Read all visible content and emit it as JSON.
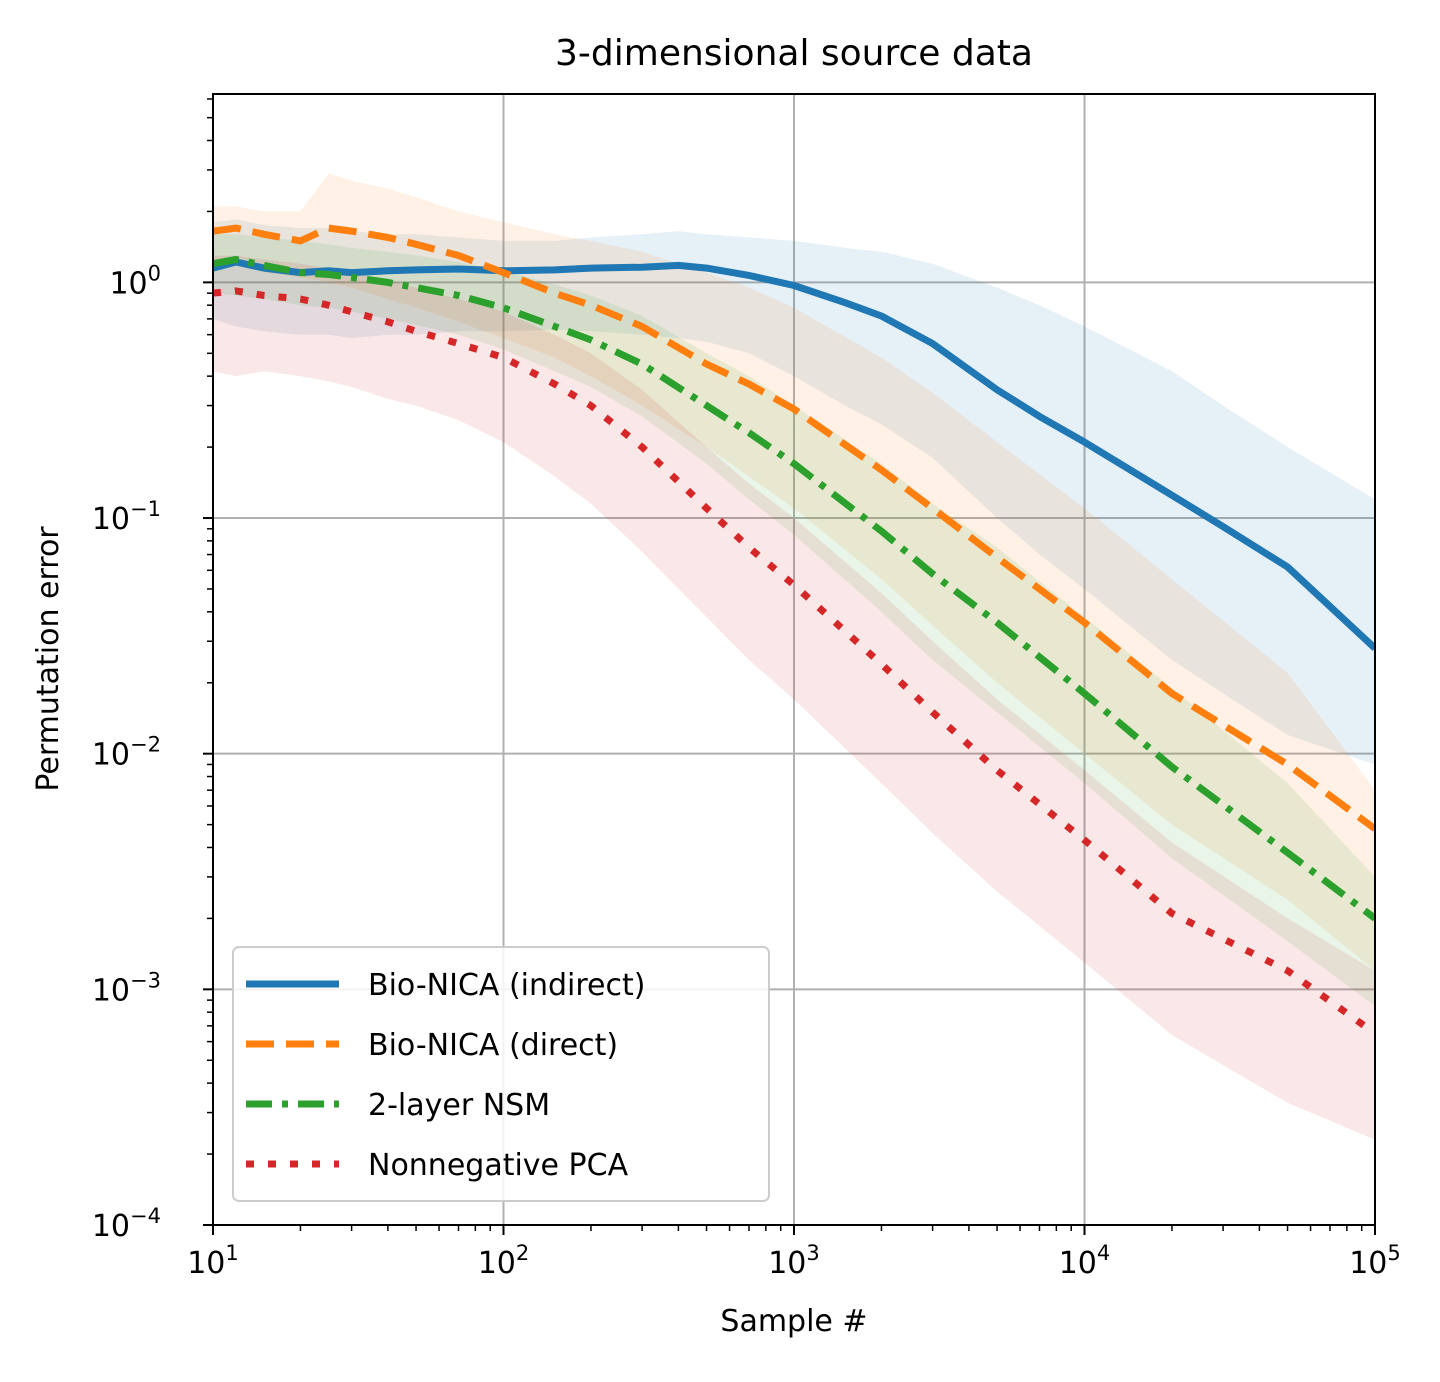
{
  "chart_data": {
    "type": "line",
    "title": "3-dimensional source data",
    "xlabel": "Sample #",
    "ylabel": "Permutation error",
    "xscale": "log",
    "yscale": "log",
    "xlim": [
      10,
      100000
    ],
    "ylim": [
      0.0001,
      6.3
    ],
    "x_ticks": [
      {
        "value": 10,
        "base": "10",
        "exp": "1"
      },
      {
        "value": 100,
        "base": "10",
        "exp": "2"
      },
      {
        "value": 1000,
        "base": "10",
        "exp": "3"
      },
      {
        "value": 10000,
        "base": "10",
        "exp": "4"
      },
      {
        "value": 100000,
        "base": "10",
        "exp": "5"
      }
    ],
    "y_ticks": [
      {
        "value": 1,
        "base": "10",
        "exp": "0"
      },
      {
        "value": 0.1,
        "base": "10",
        "exp": "−1"
      },
      {
        "value": 0.01,
        "base": "10",
        "exp": "−2"
      },
      {
        "value": 0.001,
        "base": "10",
        "exp": "−3"
      },
      {
        "value": 0.0001,
        "base": "10",
        "exp": "−4"
      }
    ],
    "grid": true,
    "legend_position": "lower-left",
    "series": [
      {
        "name": "Bio-NICA (indirect)",
        "color": "#1f77b4",
        "style": "solid",
        "x": [
          10,
          12,
          15,
          20,
          25,
          30,
          40,
          50,
          70,
          100,
          150,
          200,
          300,
          400,
          500,
          700,
          1000,
          1500,
          2000,
          3000,
          5000,
          7000,
          10000,
          20000,
          30000,
          50000,
          100000
        ],
        "y": [
          1.15,
          1.22,
          1.15,
          1.1,
          1.12,
          1.1,
          1.12,
          1.13,
          1.14,
          1.12,
          1.13,
          1.15,
          1.16,
          1.18,
          1.15,
          1.07,
          0.97,
          0.82,
          0.72,
          0.55,
          0.35,
          0.27,
          0.21,
          0.125,
          0.092,
          0.062,
          0.028
        ],
        "band_lower": [
          0.7,
          0.65,
          0.62,
          0.6,
          0.6,
          0.58,
          0.6,
          0.6,
          0.62,
          0.62,
          0.63,
          0.62,
          0.6,
          0.58,
          0.56,
          0.5,
          0.4,
          0.3,
          0.25,
          0.18,
          0.1,
          0.07,
          0.05,
          0.025,
          0.018,
          0.012,
          0.009
        ],
        "band_upper": [
          1.8,
          1.85,
          1.75,
          1.7,
          1.7,
          1.65,
          1.6,
          1.6,
          1.55,
          1.5,
          1.5,
          1.55,
          1.6,
          1.65,
          1.6,
          1.55,
          1.5,
          1.4,
          1.35,
          1.2,
          0.95,
          0.8,
          0.65,
          0.42,
          0.3,
          0.2,
          0.12
        ]
      },
      {
        "name": "Bio-NICA (direct)",
        "color": "#ff7f0e",
        "style": "dashed",
        "x": [
          10,
          12,
          15,
          20,
          25,
          30,
          40,
          50,
          70,
          100,
          150,
          200,
          300,
          500,
          700,
          1000,
          2000,
          3000,
          5000,
          10000,
          20000,
          50000,
          100000
        ],
        "y": [
          1.65,
          1.7,
          1.6,
          1.5,
          1.7,
          1.65,
          1.55,
          1.45,
          1.3,
          1.1,
          0.9,
          0.8,
          0.65,
          0.45,
          0.37,
          0.29,
          0.16,
          0.11,
          0.068,
          0.036,
          0.018,
          0.009,
          0.0048
        ],
        "band_lower": [
          1.25,
          1.2,
          1.1,
          1.05,
          1.0,
          0.95,
          0.85,
          0.78,
          0.68,
          0.58,
          0.48,
          0.4,
          0.3,
          0.2,
          0.15,
          0.11,
          0.055,
          0.035,
          0.02,
          0.01,
          0.005,
          0.0024,
          0.0012
        ],
        "band_upper": [
          2.1,
          2.1,
          2.0,
          2.0,
          2.9,
          2.7,
          2.5,
          2.3,
          2.0,
          1.8,
          1.6,
          1.5,
          1.35,
          1.1,
          0.95,
          0.78,
          0.48,
          0.34,
          0.21,
          0.11,
          0.055,
          0.022,
          0.007
        ]
      },
      {
        "name": "2-layer NSM",
        "color": "#2ca02c",
        "style": "dashdot",
        "x": [
          10,
          12,
          15,
          20,
          25,
          30,
          40,
          50,
          70,
          100,
          150,
          200,
          300,
          500,
          700,
          1000,
          2000,
          3000,
          5000,
          10000,
          20000,
          50000,
          100000
        ],
        "y": [
          1.2,
          1.25,
          1.18,
          1.1,
          1.08,
          1.05,
          1.0,
          0.95,
          0.88,
          0.78,
          0.65,
          0.57,
          0.45,
          0.3,
          0.23,
          0.17,
          0.088,
          0.058,
          0.036,
          0.018,
          0.0088,
          0.0038,
          0.002
        ],
        "band_lower": [
          0.9,
          0.88,
          0.85,
          0.8,
          0.78,
          0.75,
          0.7,
          0.66,
          0.6,
          0.52,
          0.42,
          0.36,
          0.27,
          0.17,
          0.12,
          0.085,
          0.04,
          0.025,
          0.015,
          0.0075,
          0.0036,
          0.0016,
          0.00085
        ],
        "band_upper": [
          1.6,
          1.6,
          1.55,
          1.5,
          1.45,
          1.4,
          1.35,
          1.3,
          1.22,
          1.12,
          0.98,
          0.88,
          0.72,
          0.5,
          0.4,
          0.3,
          0.17,
          0.115,
          0.075,
          0.038,
          0.019,
          0.0075,
          0.003
        ]
      },
      {
        "name": "Nonnegative PCA",
        "color": "#d62728",
        "style": "dotted",
        "x": [
          10,
          12,
          15,
          20,
          25,
          30,
          40,
          50,
          70,
          100,
          150,
          200,
          300,
          500,
          700,
          1000,
          2000,
          3000,
          5000,
          10000,
          20000,
          50000,
          100000
        ],
        "y": [
          0.9,
          0.92,
          0.88,
          0.85,
          0.8,
          0.75,
          0.68,
          0.62,
          0.55,
          0.48,
          0.37,
          0.3,
          0.2,
          0.11,
          0.075,
          0.052,
          0.024,
          0.015,
          0.0085,
          0.0043,
          0.0021,
          0.0012,
          0.00065
        ],
        "band_lower": [
          0.42,
          0.4,
          0.42,
          0.4,
          0.38,
          0.36,
          0.32,
          0.3,
          0.26,
          0.21,
          0.15,
          0.115,
          0.072,
          0.038,
          0.025,
          0.017,
          0.0075,
          0.0046,
          0.0026,
          0.0013,
          0.00064,
          0.00033,
          0.00023
        ],
        "band_upper": [
          1.3,
          1.3,
          1.25,
          1.2,
          1.15,
          1.1,
          1.02,
          0.95,
          0.85,
          0.75,
          0.6,
          0.5,
          0.35,
          0.2,
          0.14,
          0.1,
          0.048,
          0.03,
          0.017,
          0.0085,
          0.0042,
          0.002,
          0.0012
        ]
      }
    ]
  }
}
